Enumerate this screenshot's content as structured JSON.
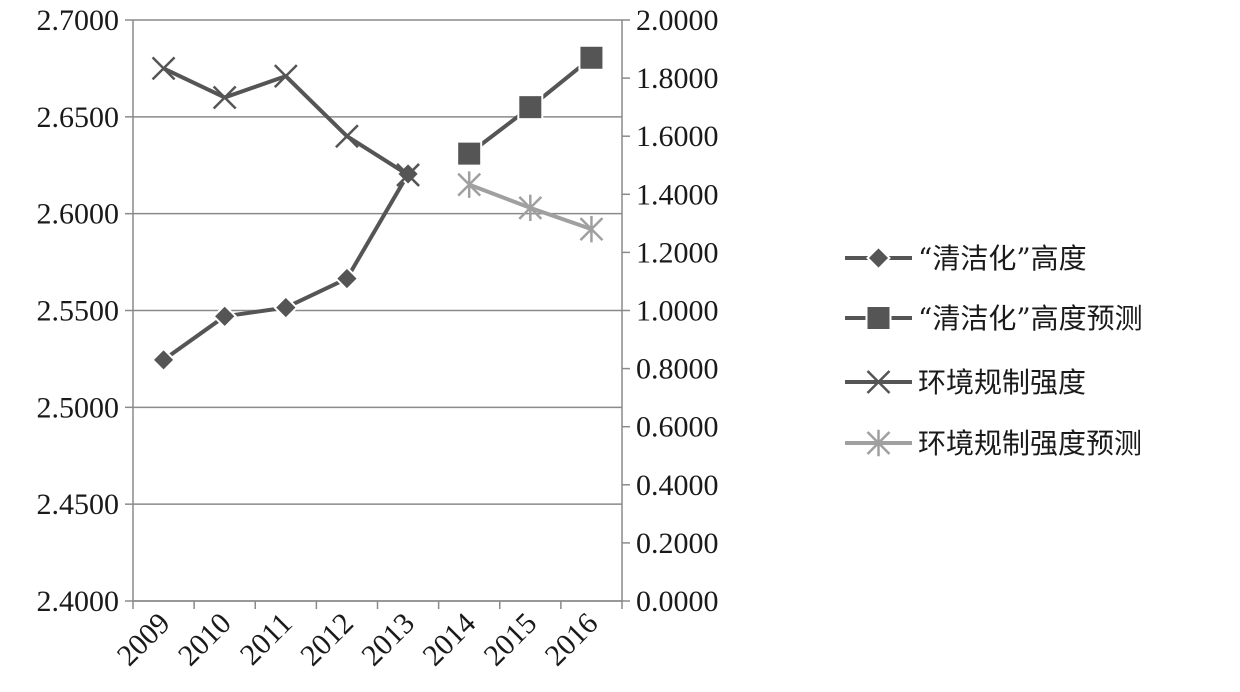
{
  "chart_data": {
    "type": "line",
    "categories": [
      "2009",
      "2010",
      "2011",
      "2012",
      "2013",
      "2014",
      "2015",
      "2016"
    ],
    "left_axis": {
      "min": 2.4,
      "max": 2.7,
      "step": 0.05,
      "ticks": [
        "2.4000",
        "2.4500",
        "2.5000",
        "2.5500",
        "2.6000",
        "2.6500",
        "2.7000"
      ]
    },
    "right_axis": {
      "min": 0,
      "max": 2,
      "step": 0.2,
      "ticks": [
        "0.0000",
        "0.2000",
        "0.4000",
        "0.6000",
        "0.8000",
        "1.0000",
        "1.2000",
        "1.4000",
        "1.6000",
        "1.8000",
        "2.0000"
      ]
    },
    "grid": true,
    "legend_position": "right",
    "series": [
      {
        "name": "“清洁化”高度",
        "axis": "right",
        "marker": "diamond",
        "color": "#555555",
        "values": [
          0.83,
          0.98,
          1.01,
          1.11,
          1.47,
          null,
          null,
          null
        ]
      },
      {
        "name": "“清洁化”高度预测",
        "axis": "right",
        "marker": "square",
        "color": "#555555",
        "values": [
          null,
          null,
          null,
          null,
          null,
          1.54,
          1.7,
          1.87
        ]
      },
      {
        "name": "环境规制强度",
        "axis": "left",
        "marker": "x",
        "color": "#555555",
        "values": [
          2.675,
          2.66,
          2.671,
          2.64,
          2.62,
          null,
          null,
          null
        ]
      },
      {
        "name": "环境规制强度预测",
        "axis": "left",
        "marker": "star",
        "color": "#a0a0a0",
        "values": [
          null,
          null,
          null,
          null,
          null,
          2.615,
          2.603,
          2.592
        ]
      }
    ]
  }
}
